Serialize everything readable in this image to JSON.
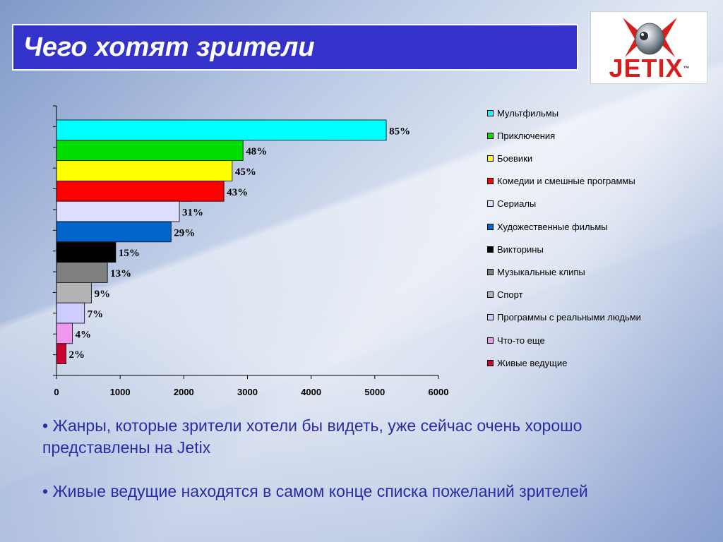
{
  "slide": {
    "title": "Чего хотят зрители",
    "logo_text": "JETIX",
    "logo_mark": "™",
    "bullets": [
      "• Жанры, которые зрители хотели бы видеть, уже сейчас очень хорошо представлены на Jetix",
      "• Живые ведущие находятся в самом конце списка пожеланий зрителей"
    ]
  },
  "chart_data": {
    "type": "bar",
    "orientation": "horizontal",
    "categories": [
      "Мультфильмы",
      "Приключения",
      "Боевики",
      "Комедии и смешные программы",
      "Сериалы",
      "Художественные фильмы",
      "Викторины",
      "Музыкальные клипы",
      "Спорт",
      "Программы с реальными людьми",
      "Что-то еще",
      "Живые ведущие"
    ],
    "values": [
      5180,
      2930,
      2760,
      2630,
      1930,
      1800,
      930,
      800,
      550,
      440,
      250,
      150
    ],
    "data_labels": [
      "85%",
      "48%",
      "45%",
      "43%",
      "31%",
      "29%",
      "15%",
      "13%",
      "9%",
      "7%",
      "4%",
      "2%"
    ],
    "colors": [
      "#00ffff",
      "#00dd00",
      "#ffff00",
      "#ff0000",
      "#ddddff",
      "#0066cc",
      "#000000",
      "#808080",
      "#b4b4b4",
      "#ccccff",
      "#ee99ee",
      "#cc0033"
    ],
    "xlim": [
      0,
      6000
    ],
    "xticks": [
      0,
      1000,
      2000,
      3000,
      4000,
      5000,
      6000
    ],
    "grid": false,
    "legend_position": "right"
  }
}
